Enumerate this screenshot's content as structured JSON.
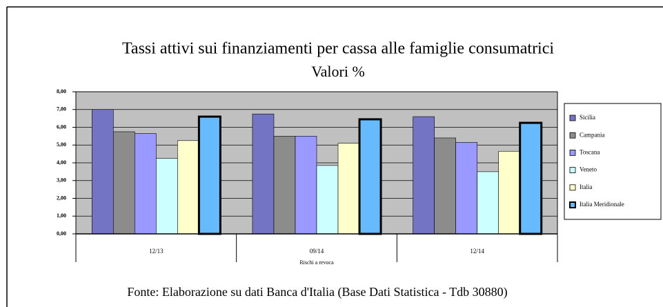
{
  "chart_data": {
    "type": "bar",
    "title": "Tassi attivi sui finanziamenti per cassa alle famiglie consumatrici",
    "subtitle": "Valori %",
    "x_label": "Rischi a revoca",
    "source": "Fonte: Elaborazione su dati Banca d'Italia (Base Dati Statistica - Tdb 30880)",
    "categories": [
      "12/13",
      "09/14",
      "12/14"
    ],
    "series": [
      {
        "name": "Sicilia",
        "color": "#7474c4",
        "values": [
          7.0,
          6.75,
          6.6
        ]
      },
      {
        "name": "Campania",
        "color": "#8c8c8c",
        "values": [
          5.75,
          5.5,
          5.4
        ]
      },
      {
        "name": "Toscana",
        "color": "#9999ff",
        "values": [
          5.65,
          5.5,
          5.15
        ]
      },
      {
        "name": "Veneto",
        "color": "#ccffff",
        "values": [
          4.25,
          3.85,
          3.5
        ]
      },
      {
        "name": "Italia",
        "color": "#ffffcc",
        "values": [
          5.25,
          5.1,
          4.65
        ]
      },
      {
        "name": "Italia Meridionale",
        "color": "#66bbff",
        "values": [
          6.6,
          6.45,
          6.25
        ]
      }
    ],
    "ylim": [
      0,
      8
    ],
    "yticks": [
      {
        "value": 0,
        "label": "0,00"
      },
      {
        "value": 1,
        "label": "1,00"
      },
      {
        "value": 2,
        "label": "2,00"
      },
      {
        "value": 3,
        "label": "3,00"
      },
      {
        "value": 4,
        "label": "4,00"
      },
      {
        "value": 5,
        "label": "5,00"
      },
      {
        "value": 6,
        "label": "6,00"
      },
      {
        "value": 7,
        "label": "7,00"
      },
      {
        "value": 8,
        "label": "8,00"
      }
    ],
    "grid": true,
    "legend": "right"
  }
}
